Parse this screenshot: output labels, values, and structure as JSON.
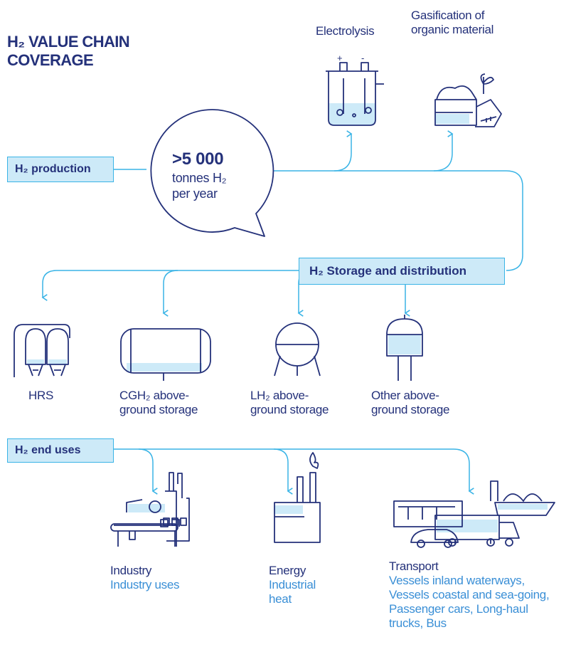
{
  "header": {
    "title": "H₂ VALUE CHAIN COVERAGE"
  },
  "production": {
    "label": "H₂ production",
    "amount": ">5 000",
    "unit": "tonnes H₂",
    "period": "per year",
    "methods": [
      "Electrolysis",
      "Gasification of organic material"
    ],
    "electrode_signs": [
      "+",
      "-"
    ]
  },
  "storage": {
    "label": "H₂ Storage and distribution",
    "items": [
      "HRS",
      "CGH₂ above-ground storage",
      "LH₂ above-ground storage",
      "Other above-ground storage"
    ]
  },
  "end_uses": {
    "label": "H₂ end uses",
    "items": [
      {
        "name": "Industry",
        "detail": "Industry uses"
      },
      {
        "name": "Energy",
        "detail": "Industrial heat"
      },
      {
        "name": "Transport",
        "detail": "Vessels inland waterways, Vessels coastal and sea-going, Passenger cars, Long-haul trucks, Bus"
      }
    ]
  }
}
